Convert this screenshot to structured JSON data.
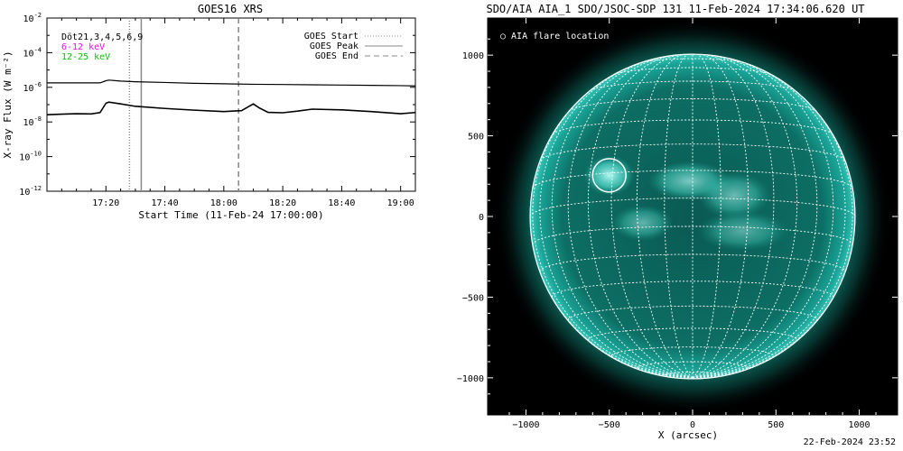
{
  "chart_data": [
    {
      "type": "line",
      "title": "GOES16 XRS",
      "xlabel": "Start Time (11-Feb-24 17:00:00)",
      "ylabel": "X-ray Flux (W m⁻²)",
      "y_scale": "log",
      "ylim": [
        1e-12,
        0.01
      ],
      "xlim_minutes_from_start": [
        0,
        125
      ],
      "x_tick_labels": [
        "17:20",
        "17:40",
        "18:00",
        "18:20",
        "18:40",
        "19:00"
      ],
      "x_tick_minutes": [
        20,
        40,
        60,
        80,
        100,
        120
      ],
      "y_tick_labels": [
        {
          "base": "10",
          "exp": "-2",
          "value": 0.01
        },
        {
          "base": "10",
          "exp": "-4",
          "value": 0.0001
        },
        {
          "base": "10",
          "exp": "-6",
          "value": 1e-06
        },
        {
          "base": "10",
          "exp": "-8",
          "value": 1e-08
        },
        {
          "base": "10",
          "exp": "-10",
          "value": 1e-10
        },
        {
          "base": "10",
          "exp": "-12",
          "value": 1e-12
        }
      ],
      "detectors_label": "Döt21,3,4,5,6,9",
      "series": [
        {
          "name": "6-12 keV",
          "color": "#ff00ff",
          "x_minutes": [
            0,
            18,
            20,
            21,
            25,
            30,
            40,
            50,
            60,
            70,
            80,
            90,
            100,
            110,
            120,
            125
          ],
          "values": [
            1.8e-06,
            1.8e-06,
            2.4e-06,
            2.6e-06,
            2.3e-06,
            2.1e-06,
            1.9e-06,
            1.7e-06,
            1.6e-06,
            1.5e-06,
            1.45e-06,
            1.4e-06,
            1.35e-06,
            1.3e-06,
            1.25e-06,
            1.2e-06
          ]
        },
        {
          "name": "12-25 keV",
          "color": "#00c800",
          "x_minutes": [
            0,
            5,
            10,
            15,
            18,
            20,
            21,
            25,
            30,
            40,
            50,
            60,
            66,
            70,
            72,
            75,
            80,
            85,
            90,
            100,
            110,
            120,
            125
          ],
          "values": [
            2.6e-08,
            2.8e-08,
            3e-08,
            2.9e-08,
            3.5e-08,
            1.2e-07,
            1.4e-07,
            1.1e-07,
            8e-08,
            6e-08,
            4.8e-08,
            4e-08,
            4.5e-08,
            1.1e-07,
            6.5e-08,
            3.6e-08,
            3.4e-08,
            4.2e-08,
            5.5e-08,
            5e-08,
            4e-08,
            3e-08,
            3.5e-08
          ]
        }
      ],
      "markers": [
        {
          "name": "GOES Start",
          "minute": 28,
          "style": "dotted",
          "color": "#888888"
        },
        {
          "name": "GOES Peak",
          "minute": 32,
          "style": "solid",
          "color": "#888888"
        },
        {
          "name": "GOES End",
          "minute": 65,
          "style": "dashed",
          "color": "#888888"
        }
      ],
      "legend_placement": "top-right"
    },
    {
      "type": "image",
      "title": "SDO/AIA AIA_1 SDO/JSOC-SDP 131 11-Feb-2024 17:34:06.620 UT",
      "xlabel": "X (arcsec)",
      "xlim": [
        -1230,
        1230
      ],
      "ylim": [
        -1230,
        1230
      ],
      "x_tick_labels": [
        "−1000",
        "−500",
        "0",
        "500",
        "1000"
      ],
      "y_tick_labels": [
        "1000",
        "500",
        "0",
        "−500",
        "−1000"
      ],
      "tick_values": [
        -1000,
        -500,
        0,
        500,
        1000
      ],
      "solar_radius_arcsec": 975,
      "legend": "○ AIA flare location",
      "flare_location": {
        "x": -500,
        "y": 255,
        "radius": 100
      },
      "colors": {
        "disk": "#0c7a6e",
        "limb_glow": "#5fe0d0",
        "background": "#000000",
        "active_region": "#7ff0e6"
      }
    }
  ],
  "timestamp": "22-Feb-2024 23:52"
}
